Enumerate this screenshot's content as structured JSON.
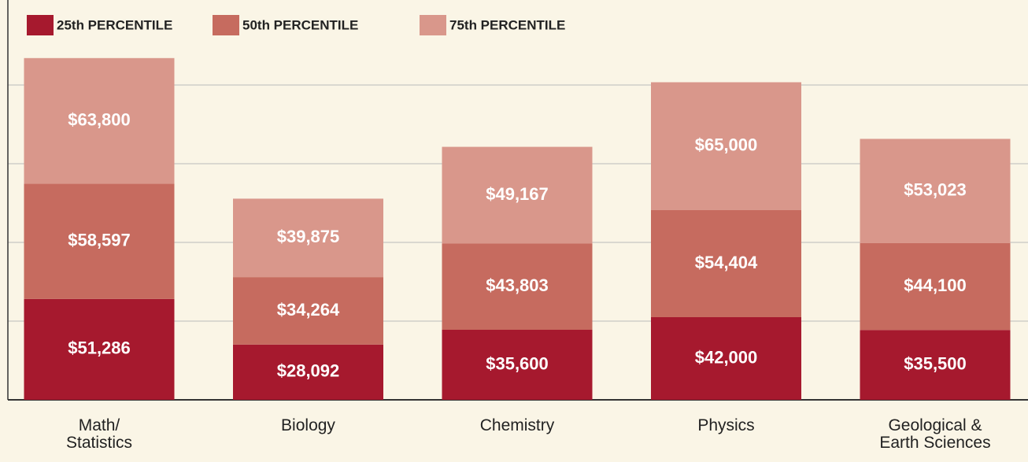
{
  "chart_data": {
    "type": "stacked_bar",
    "categories": [
      "Math/\nStatistics",
      "Biology",
      "Chemistry",
      "Physics",
      "Geological &\nEarth Sciences"
    ],
    "series": [
      {
        "name": "25th PERCENTILE",
        "color": "#a6192e",
        "values": [
          51286,
          28092,
          35600,
          42000,
          35500
        ],
        "value_labels": [
          "$51,286",
          "$28,092",
          "$35,600",
          "$42,000",
          "$35,500"
        ]
      },
      {
        "name": "50th PERCENTILE",
        "color": "#c66b5f",
        "values": [
          58597,
          34264,
          43803,
          54404,
          44100
        ],
        "value_labels": [
          "$58,597",
          "$34,264",
          "$43,803",
          "$54,404",
          "$44,100"
        ]
      },
      {
        "name": "75th PERCENTILE",
        "color": "#d9978b",
        "values": [
          63800,
          39875,
          49167,
          65000,
          53023
        ],
        "value_labels": [
          "$63,800",
          "$39,875",
          "$49,167",
          "$65,000",
          "$53,023"
        ]
      }
    ],
    "ylim": [
      0,
      200000
    ],
    "yticks": [
      0,
      40000,
      80000,
      120000,
      160000
    ],
    "grid": true,
    "legend": "top-left"
  }
}
